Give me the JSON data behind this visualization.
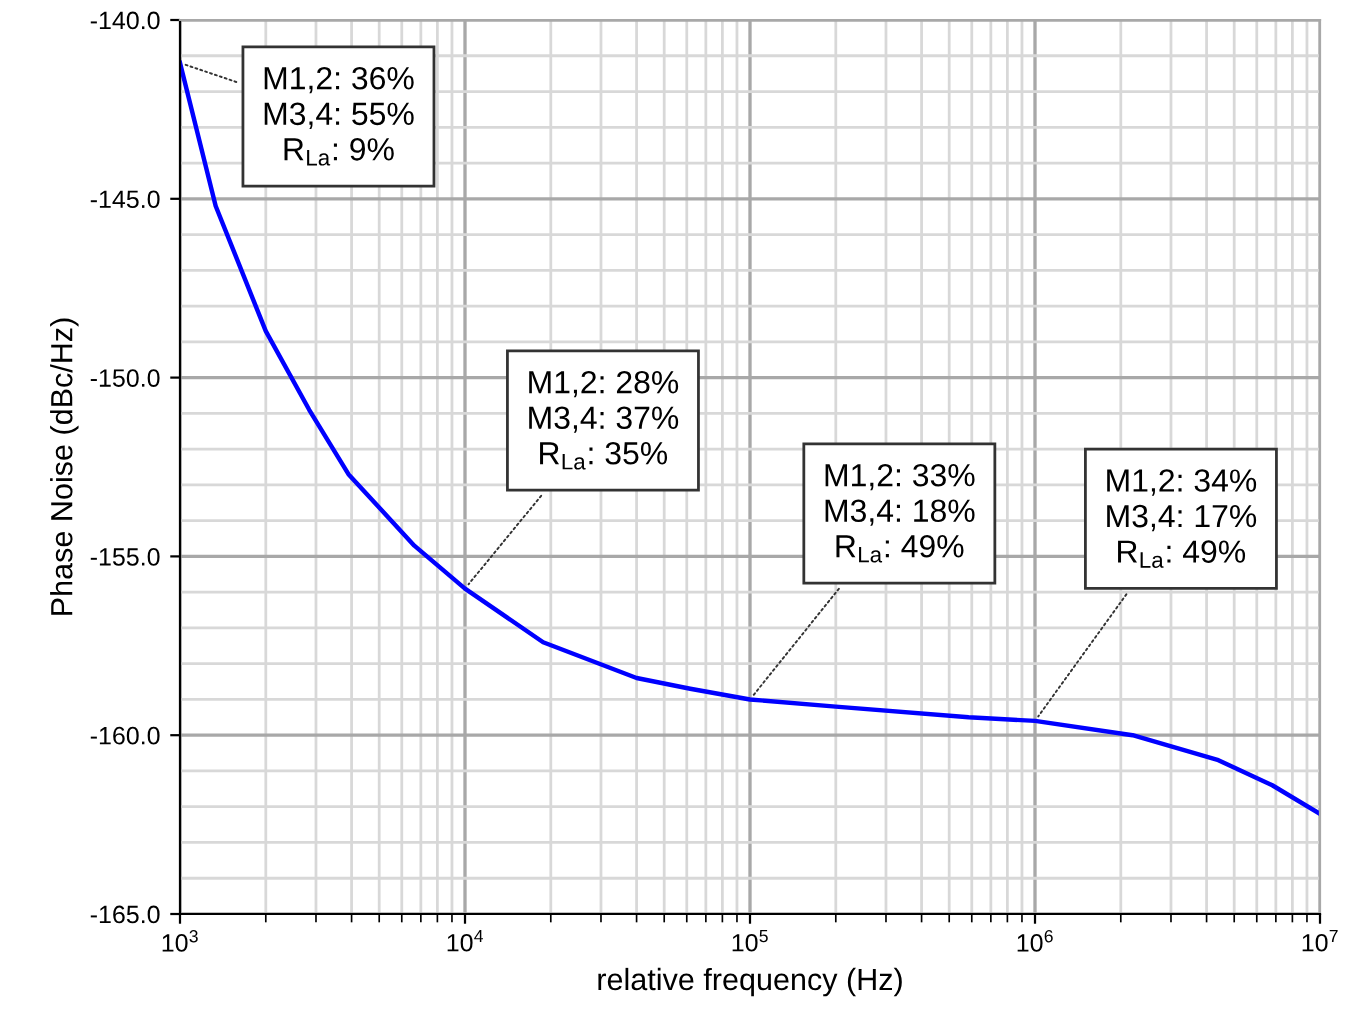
{
  "chart_data": {
    "type": "line",
    "xlabel": "relative frequency (Hz)",
    "ylabel": "Phase Noise (dBc/Hz)",
    "log": "x",
    "xlim": [
      1000,
      10000000
    ],
    "ylim": [
      -165,
      -140
    ],
    "xticks": [
      {
        "value": 1000,
        "label": "10$^{3}$"
      },
      {
        "value": 10000,
        "label": "10$^{4}$"
      },
      {
        "value": 100000,
        "label": "10$^{5}$"
      },
      {
        "value": 1000000,
        "label": "10$^{6}$"
      },
      {
        "value": 10000000,
        "label": "10$^{7}$"
      }
    ],
    "yticks": [
      {
        "value": -165,
        "label": "-165.0"
      },
      {
        "value": -160,
        "label": "-160.0"
      },
      {
        "value": -155,
        "label": "-155.0"
      },
      {
        "value": -150,
        "label": "-150.0"
      },
      {
        "value": -145,
        "label": "-145.0"
      },
      {
        "value": -140,
        "label": "-140.0"
      }
    ],
    "grid": true,
    "legend": false,
    "marker": "none",
    "line_style": "solid",
    "series": [
      {
        "color": "#0000ff",
        "x": [
          1000,
          1334,
          2000,
          2840,
          3900,
          6640,
          10000,
          18800,
          40000,
          61700,
          100000,
          200000,
          585000,
          1000000,
          2200000,
          4400000,
          6800000,
          10000000
        ],
        "values": [
          -141.2,
          -145.2,
          -148.7,
          -150.9,
          -152.7,
          -154.7,
          -155.9,
          -157.4,
          -158.4,
          -158.7,
          -159.0,
          -159.2,
          -159.5,
          -159.6,
          -160.0,
          -160.7,
          -161.4,
          -162.2
        ]
      }
    ],
    "annotations": [
      {
        "text": "M1,2: 36%\nM3,4: 55%\nR$_{La}$: 9%",
        "x": 1000,
        "y": -141.2
      },
      {
        "text": "M1,2: 28%\nM3,4: 37%\nR$_{La}$: 35%",
        "x": 10000,
        "y": -155.9
      },
      {
        "text": "M1,2: 33%\nM3,4: 18%\nR$_{La}$: 49%",
        "x": 100000,
        "y": -159.0
      },
      {
        "text": "M1,2: 34%\nM3,4: 17%\nR$_{La}$: 49%",
        "x": 1000000,
        "y": -159.6
      }
    ]
  }
}
